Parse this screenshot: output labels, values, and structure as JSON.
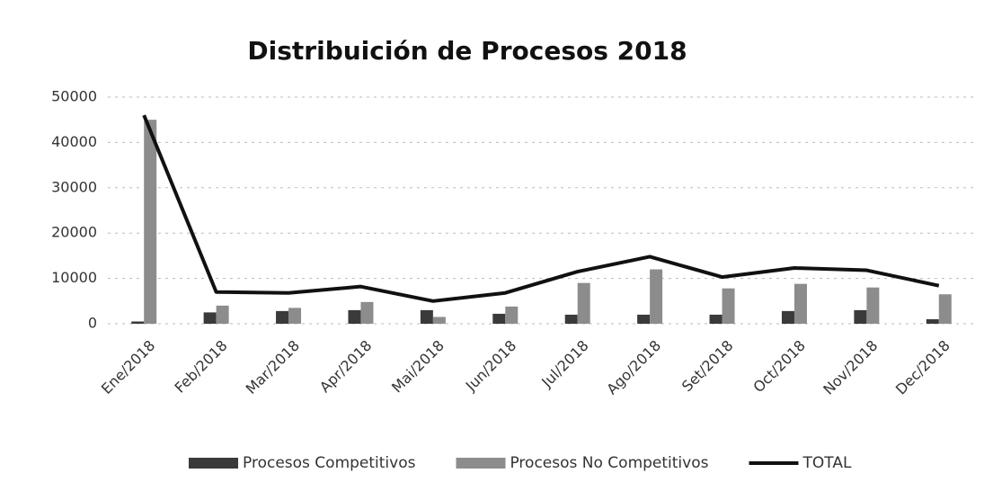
{
  "chart_data": {
    "type": "bar_line",
    "title": "Distribuición de Procesos 2018",
    "categories": [
      "Ene/2018",
      "Feb/2018",
      "Mar/2018",
      "Apr/2018",
      "Mai/2018",
      "Jun/2018",
      "Jul/2018",
      "Ago/2018",
      "Set/2018",
      "Oct/2018",
      "Nov/2018",
      "Dec/2018"
    ],
    "series": [
      {
        "name": "Procesos Competitivos",
        "color": "#3a3a3a",
        "kind": "bar",
        "values": [
          500,
          2500,
          2800,
          3000,
          3000,
          2200,
          2000,
          2000,
          2000,
          2800,
          3000,
          1000
        ]
      },
      {
        "name": "Procesos No Competitivos",
        "color": "#8c8c8c",
        "kind": "bar",
        "values": [
          45000,
          4000,
          3500,
          4800,
          1500,
          3800,
          9000,
          12000,
          7800,
          8800,
          8000,
          6500
        ]
      },
      {
        "name": "TOTAL",
        "color": "#111111",
        "kind": "line",
        "values": [
          46000,
          7000,
          6800,
          8200,
          5000,
          6800,
          11500,
          14800,
          10300,
          12300,
          11800,
          8400
        ]
      }
    ],
    "ylim": [
      0,
      50000
    ],
    "yticks": [
      0,
      10000,
      20000,
      30000,
      40000,
      50000
    ],
    "grid": true,
    "legend": "bottom"
  }
}
